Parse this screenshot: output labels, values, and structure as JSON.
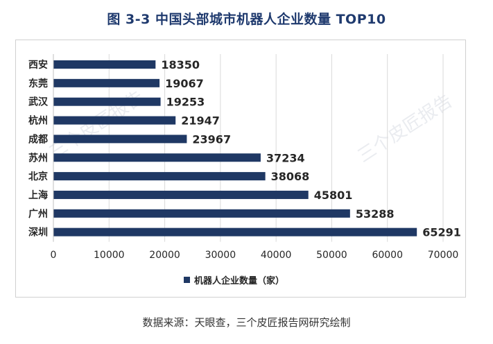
{
  "title": "图  3-3  中国头部城市机器人企业数量 TOP10",
  "source": "数据来源：天眼查，三个皮匠报告网研究绘制",
  "watermark": "三个皮匠报告",
  "colors": {
    "bar": "#1f3864",
    "grid": "#d9d9d9",
    "text": "#262626"
  },
  "chart_data": {
    "type": "bar",
    "orientation": "horizontal",
    "categories": [
      "西安",
      "东莞",
      "武汉",
      "杭州",
      "成都",
      "苏州",
      "北京",
      "上海",
      "广州",
      "深圳"
    ],
    "series": [
      {
        "name": "机器人企业数量（家）",
        "values": [
          18350,
          19067,
          19253,
          21947,
          23967,
          37234,
          38068,
          45801,
          53288,
          65291
        ]
      }
    ],
    "xlim": [
      0,
      70000
    ],
    "xticks": [
      0,
      10000,
      20000,
      30000,
      40000,
      50000,
      60000,
      70000
    ],
    "grid": true,
    "legend": "bottom"
  }
}
